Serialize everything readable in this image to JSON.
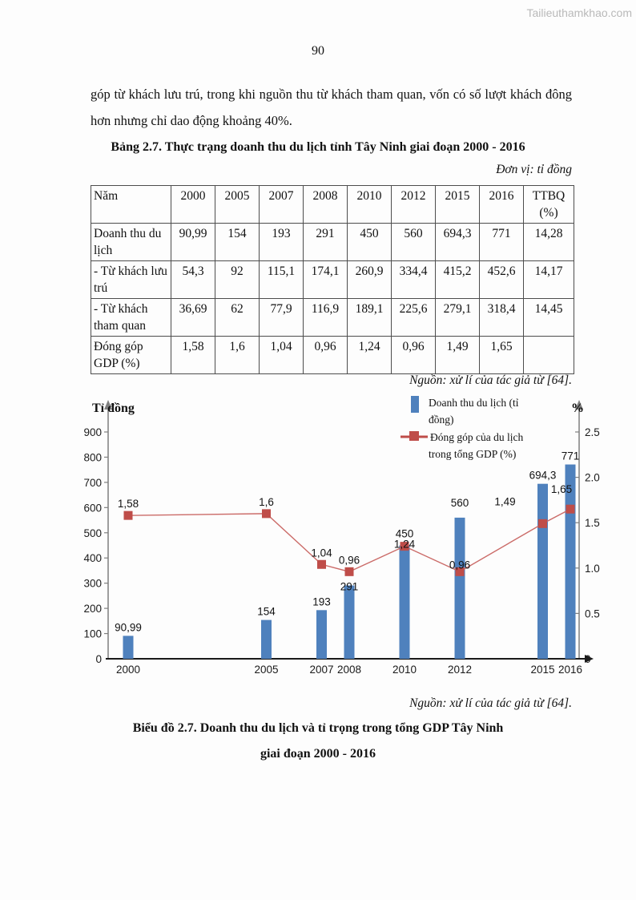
{
  "watermark": "Tailieuthamkhao.com",
  "page_number": "90",
  "paragraph": "góp từ khách lưu trú, trong khi nguồn thu từ khách tham quan, vốn có số lượt khách đông hơn nhưng chỉ dao động khoảng 40%.",
  "table": {
    "title": "Bảng 2.7. Thực trạng doanh thu du lịch tỉnh Tây Ninh giai đoạn 2000 - 2016",
    "unit_note": "Đơn vị: tỉ đồng",
    "header": [
      "Năm",
      "2000",
      "2005",
      "2007",
      "2008",
      "2010",
      "2012",
      "2015",
      "2016",
      "TTBQ\n(%)"
    ],
    "rows": [
      {
        "label": "Doanh thu du lịch",
        "values": [
          "90,99",
          "154",
          "193",
          "291",
          "450",
          "560",
          "694,3",
          "771",
          "14,28"
        ]
      },
      {
        "label": "- Từ khách lưu trú",
        "values": [
          "54,3",
          "92",
          "115,1",
          "174,1",
          "260,9",
          "334,4",
          "415,2",
          "452,6",
          "14,17"
        ]
      },
      {
        "label": "- Từ khách tham quan",
        "values": [
          "36,69",
          "62",
          "77,9",
          "116,9",
          "189,1",
          "225,6",
          "279,1",
          "318,4",
          "14,45"
        ]
      },
      {
        "label": "Đóng góp GDP (%)",
        "values": [
          "1,58",
          "1,6",
          "1,04",
          "0,96",
          "1,24",
          "0,96",
          "1,49",
          "1,65",
          ""
        ]
      }
    ],
    "source_note": "Nguồn: xử lí của tác giả từ [64]."
  },
  "chart_data": {
    "type": "combo",
    "x": [
      2000,
      2005,
      2007,
      2008,
      2010,
      2012,
      2015,
      2016
    ],
    "x_tick_labels": [
      "2000",
      "2005",
      "2007",
      "2008",
      "2010",
      "2012",
      "2015",
      "2016"
    ],
    "series": [
      {
        "name": "Doanh thu du lịch (tỉ đồng)",
        "type": "bar",
        "axis": "left",
        "color": "#4f81bd",
        "values": [
          90.99,
          154,
          193,
          291,
          450,
          560,
          694.3,
          771
        ],
        "labels": [
          "90,99",
          "154",
          "193",
          "291",
          "450",
          "560",
          "694,3",
          "771"
        ],
        "label_offsets": [
          [
            0,
            0
          ],
          [
            0,
            0
          ],
          [
            0,
            0
          ],
          [
            0,
            12
          ],
          [
            0,
            -4
          ],
          [
            0,
            -8
          ],
          [
            0,
            0
          ],
          [
            0,
            0
          ]
        ]
      },
      {
        "name": "Đóng góp của du lịch trong tổng GDP (%)",
        "type": "line",
        "axis": "right",
        "color": "#bf4d49",
        "line_color": "#cb6b68",
        "values": [
          1.58,
          1.6,
          1.04,
          0.96,
          1.24,
          0.96,
          1.49,
          1.65
        ],
        "labels": [
          "1,58",
          "1,6",
          "1,04",
          "0,96",
          "1,24",
          "0,96",
          "1,49",
          "1,65"
        ],
        "label_offsets": [
          [
            0,
            0
          ],
          [
            0,
            0
          ],
          [
            0,
            0
          ],
          [
            0,
            0
          ],
          [
            0,
            12
          ],
          [
            0,
            6
          ],
          [
            -47,
            -13
          ],
          [
            -11,
            -10
          ]
        ]
      }
    ],
    "left_axis": {
      "title": "Tỉ đồng",
      "min": 0,
      "max": 900,
      "step": 100
    },
    "right_axis": {
      "title": "%",
      "min": 0,
      "max": 2.5,
      "step": 0.5,
      "tick_labels": [
        "0",
        "0.5",
        "1.0",
        "1.5",
        "2.0",
        "2.5"
      ]
    },
    "legend": {
      "position": "top-right",
      "entries": [
        {
          "label": "Doanh thu du lịch (tỉ đồng)",
          "lines": [
            "Doanh thu du lịch (tỉ",
            "đồng)"
          ],
          "marker": "bar",
          "color": "#4f81bd"
        },
        {
          "label": "Đóng góp của du lịch trong tổng GDP (%)",
          "lines": [
            "Đóng góp của du lịch",
            "trong tổng GDP (%)"
          ],
          "marker": "line-square",
          "color": "#bf4d49"
        }
      ]
    },
    "grid": false
  },
  "chart_caption": {
    "source_note": "Nguồn: xử lí của tác giả từ [64].",
    "line1": "Biểu đồ 2.7. Doanh thu du lịch và tỉ trọng trong tổng GDP Tây Ninh",
    "line2": "giai đoạn 2000 - 2016"
  }
}
